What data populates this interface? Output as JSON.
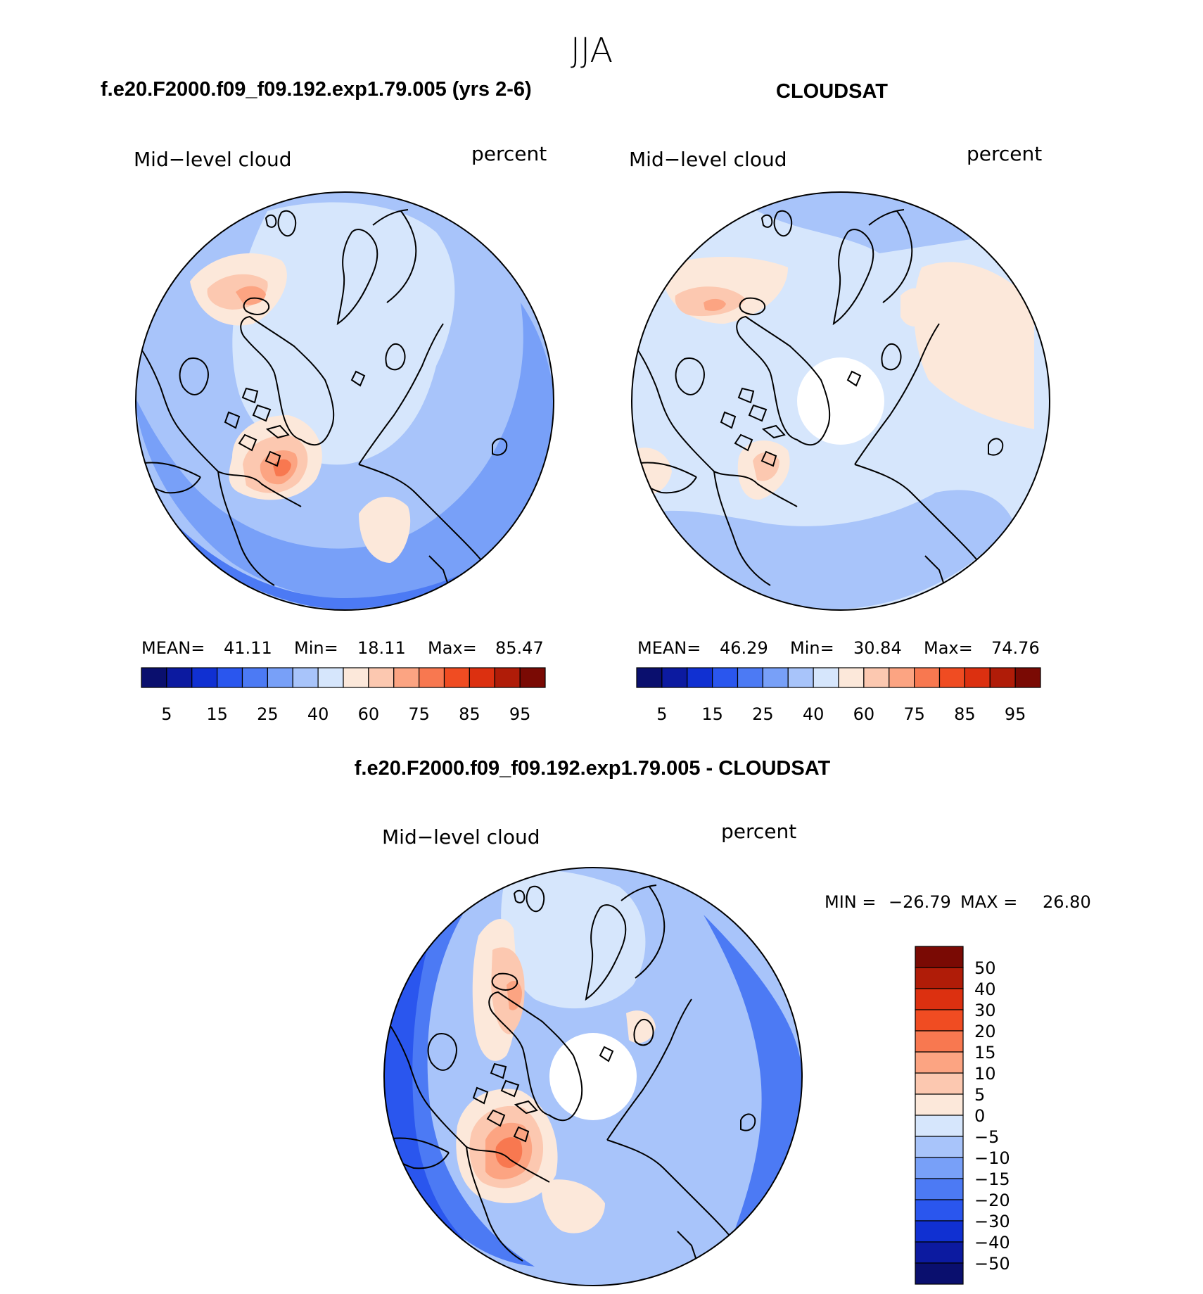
{
  "season_title": "JJA",
  "panels": [
    {
      "id": "model",
      "header": "f.e20.F2000.f09_f09.192.exp1.79.005 (yrs 2-6)",
      "variable": "Mid−level cloud",
      "units": "percent",
      "stats": {
        "mean_label": "MEAN=",
        "mean": "41.11",
        "min_label": "Min=",
        "min": "18.11",
        "max_label": "Max=",
        "max": "85.47"
      },
      "polar_hole": false
    },
    {
      "id": "obs",
      "header": "CLOUDSAT",
      "variable": "Mid−level cloud",
      "units": "percent",
      "stats": {
        "mean_label": "MEAN=",
        "mean": "46.29",
        "min_label": "Min=",
        "min": "30.84",
        "max_label": "Max=",
        "max": "74.76"
      },
      "polar_hole": true
    },
    {
      "id": "diff",
      "header": "f.e20.F2000.f09_f09.192.exp1.79.005 - CLOUDSAT",
      "variable": "Mid−level cloud",
      "units": "percent",
      "stats": {
        "min_label": "MIN =",
        "min": "−26.79",
        "max_label": "MAX =",
        "max": "26.80"
      },
      "polar_hole": true
    }
  ],
  "colorbar_abs": {
    "colors": [
      "#0a0f6e",
      "#0c1aa0",
      "#1030d2",
      "#2a56ee",
      "#4c7af4",
      "#78a0f8",
      "#a8c4fa",
      "#d6e6fc",
      "#fce8da",
      "#fcc8b0",
      "#fca482",
      "#f87850",
      "#f04c22",
      "#dc3010",
      "#b01c08",
      "#7a0a04"
    ],
    "tick_labels": [
      "5",
      "15",
      "25",
      "40",
      "60",
      "75",
      "85",
      "95"
    ]
  },
  "colorbar_diff": {
    "colors": [
      "#7a0a04",
      "#b01c08",
      "#dc3010",
      "#f04c22",
      "#f87850",
      "#fca482",
      "#fcc8b0",
      "#fce8da",
      "#d6e6fc",
      "#a8c4fa",
      "#78a0f8",
      "#4c7af4",
      "#2a56ee",
      "#1030d2",
      "#0c1aa0",
      "#0a0f6e"
    ],
    "tick_labels": [
      "50",
      "40",
      "30",
      "20",
      "15",
      "10",
      "5",
      "0",
      "−5",
      "−10",
      "−15",
      "−20",
      "−30",
      "−40",
      "−50"
    ]
  },
  "map_colors": {
    "deep_blue": "#2a56ee",
    "mid_blue": "#4c7af4",
    "blue": "#78a0f8",
    "light_blue": "#a8c4fa",
    "pale_blue": "#d6e6fc",
    "pale_orange": "#fce8da",
    "light_orange": "#fcc8b0",
    "orange": "#fca482",
    "red_orange": "#f87850",
    "red": "#f04c22"
  }
}
